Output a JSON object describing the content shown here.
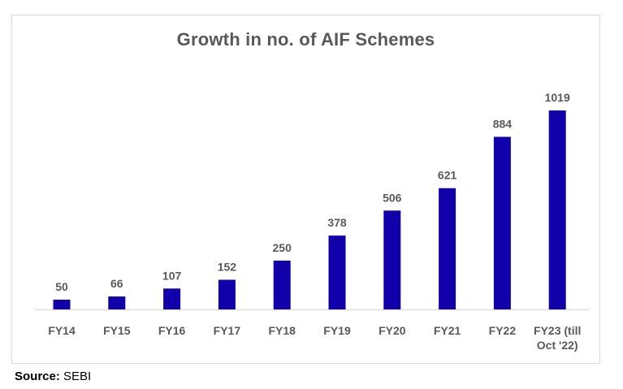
{
  "chart_data": {
    "type": "bar",
    "title": "Growth in no. of AIF Schemes",
    "categories": [
      "FY14",
      "FY15",
      "FY16",
      "FY17",
      "FY18",
      "FY19",
      "FY20",
      "FY21",
      "FY22",
      "FY23 (till Oct '22)"
    ],
    "category_lines": [
      [
        "FY14"
      ],
      [
        "FY15"
      ],
      [
        "FY16"
      ],
      [
        "FY17"
      ],
      [
        "FY18"
      ],
      [
        "FY19"
      ],
      [
        "FY20"
      ],
      [
        "FY21"
      ],
      [
        "FY22"
      ],
      [
        "FY23 (till",
        "Oct '22)"
      ]
    ],
    "values": [
      50,
      66,
      107,
      152,
      250,
      378,
      506,
      621,
      884,
      1019
    ],
    "data_labels": [
      "50",
      "66",
      "107",
      "152",
      "250",
      "378",
      "506",
      "621",
      "884",
      "1019"
    ],
    "xlabel": "",
    "ylabel": "",
    "ylim": [
      0,
      1019
    ],
    "grid": false,
    "legend": false,
    "bar_color": "#1100aa",
    "label_color": "#595959",
    "axis_color": "#d9d9d9"
  },
  "source": {
    "label": "Source:",
    "value": " SEBI"
  }
}
